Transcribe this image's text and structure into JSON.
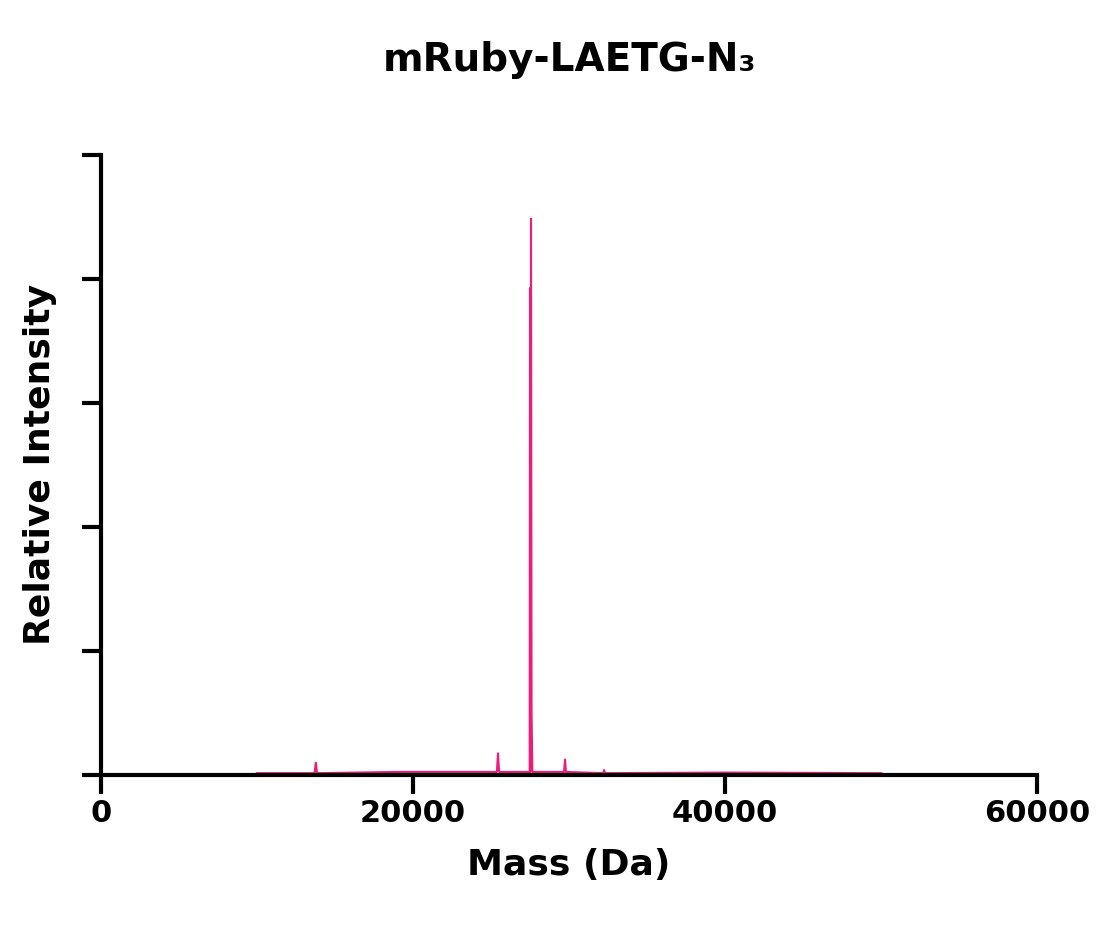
{
  "chart_data": {
    "type": "line",
    "title": "mRuby-LAETG-N₃",
    "x_label": "Mass (Da)",
    "y_label": "Relative Intensity",
    "x": [
      10000,
      13700,
      13782,
      13860,
      19000,
      23500,
      25380,
      25449,
      25520,
      27480,
      27500,
      27530,
      27564,
      27600,
      27650,
      29680,
      29744,
      29800,
      32200,
      32244,
      32300,
      40000,
      50000
    ],
    "values": [
      0.3,
      0.3,
      2.0,
      0.3,
      0.5,
      0.5,
      0.5,
      3.5,
      0.5,
      0.5,
      78.5,
      0.5,
      89.7,
      10,
      0.5,
      0.5,
      2.5,
      0.5,
      0.3,
      0.8,
      0.3,
      0.4,
      0.3
    ],
    "color": "#ec1c7c",
    "xlim": [
      0,
      60000
    ],
    "xticks": [
      0,
      20000,
      40000,
      60000
    ],
    "ylim": [
      0,
      100
    ],
    "yticks": [
      0,
      20,
      40,
      60,
      80,
      100
    ],
    "tick_labels": "x",
    "grid": false
  }
}
